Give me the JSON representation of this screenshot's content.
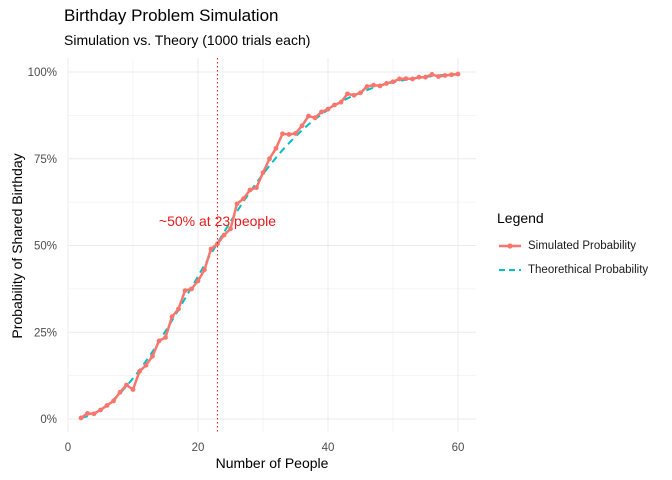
{
  "chart_data": {
    "type": "line",
    "title": "Birthday Problem Simulation",
    "subtitle": "Simulation vs. Theory (1000 trials each)",
    "xlabel": "Number of People",
    "ylabel": "Probability of Shared Birthday",
    "xlim": [
      0,
      62
    ],
    "ylim": [
      0,
      1
    ],
    "x_ticks": [
      0,
      20,
      40,
      60
    ],
    "y_ticks": [
      0,
      0.25,
      0.5,
      0.75,
      1.0
    ],
    "y_tick_labels": [
      "0%",
      "25%",
      "50%",
      "75%",
      "100%"
    ],
    "grid": true,
    "legend_title": "Legend",
    "legend_position": "right",
    "series": [
      {
        "name": "Simulated Probability",
        "color": "#F8766D",
        "style": "line+points",
        "x": [
          2,
          3,
          4,
          5,
          6,
          7,
          8,
          9,
          10,
          11,
          12,
          13,
          14,
          15,
          16,
          17,
          18,
          19,
          20,
          21,
          22,
          23,
          24,
          25,
          26,
          27,
          28,
          29,
          30,
          31,
          32,
          33,
          34,
          35,
          36,
          37,
          38,
          39,
          40,
          41,
          42,
          43,
          44,
          45,
          46,
          47,
          48,
          49,
          50,
          51,
          52,
          53,
          54,
          55,
          56,
          57,
          58,
          59,
          60
        ],
        "y": [
          0.003,
          0.016,
          0.015,
          0.026,
          0.039,
          0.052,
          0.077,
          0.098,
          0.085,
          0.137,
          0.155,
          0.181,
          0.225,
          0.235,
          0.295,
          0.317,
          0.37,
          0.375,
          0.398,
          0.43,
          0.49,
          0.505,
          0.53,
          0.548,
          0.62,
          0.635,
          0.66,
          0.667,
          0.71,
          0.75,
          0.78,
          0.822,
          0.82,
          0.823,
          0.845,
          0.873,
          0.868,
          0.885,
          0.893,
          0.905,
          0.913,
          0.937,
          0.933,
          0.94,
          0.958,
          0.962,
          0.96,
          0.967,
          0.972,
          0.98,
          0.981,
          0.98,
          0.985,
          0.985,
          0.993,
          0.987,
          0.99,
          0.992,
          0.994
        ]
      },
      {
        "name": "Theorethical Probability",
        "color": "#00BFC4",
        "style": "dashed",
        "x": [
          2,
          3,
          4,
          5,
          6,
          7,
          8,
          9,
          10,
          11,
          12,
          13,
          14,
          15,
          16,
          17,
          18,
          19,
          20,
          21,
          22,
          23,
          24,
          25,
          26,
          27,
          28,
          29,
          30,
          31,
          32,
          33,
          34,
          35,
          36,
          37,
          38,
          39,
          40,
          41,
          42,
          43,
          44,
          45,
          46,
          47,
          48,
          49,
          50,
          51,
          52,
          53,
          54,
          55,
          56,
          57,
          58,
          59,
          60
        ],
        "y": [
          0.003,
          0.008,
          0.016,
          0.027,
          0.04,
          0.056,
          0.074,
          0.095,
          0.117,
          0.141,
          0.167,
          0.194,
          0.223,
          0.253,
          0.284,
          0.315,
          0.347,
          0.379,
          0.411,
          0.444,
          0.476,
          0.507,
          0.538,
          0.569,
          0.598,
          0.627,
          0.654,
          0.681,
          0.706,
          0.73,
          0.753,
          0.775,
          0.795,
          0.814,
          0.832,
          0.849,
          0.864,
          0.878,
          0.891,
          0.903,
          0.914,
          0.924,
          0.933,
          0.941,
          0.948,
          0.955,
          0.961,
          0.966,
          0.97,
          0.974,
          0.978,
          0.981,
          0.984,
          0.986,
          0.988,
          0.99,
          0.992,
          0.993,
          0.994
        ]
      }
    ],
    "annotations": [
      {
        "type": "vline",
        "x": 23,
        "color": "#E41A1C",
        "style": "dotted"
      },
      {
        "type": "text",
        "text": "~50% at 23 people",
        "x": 23,
        "y": 0.57,
        "color": "#E41A1C"
      }
    ]
  }
}
